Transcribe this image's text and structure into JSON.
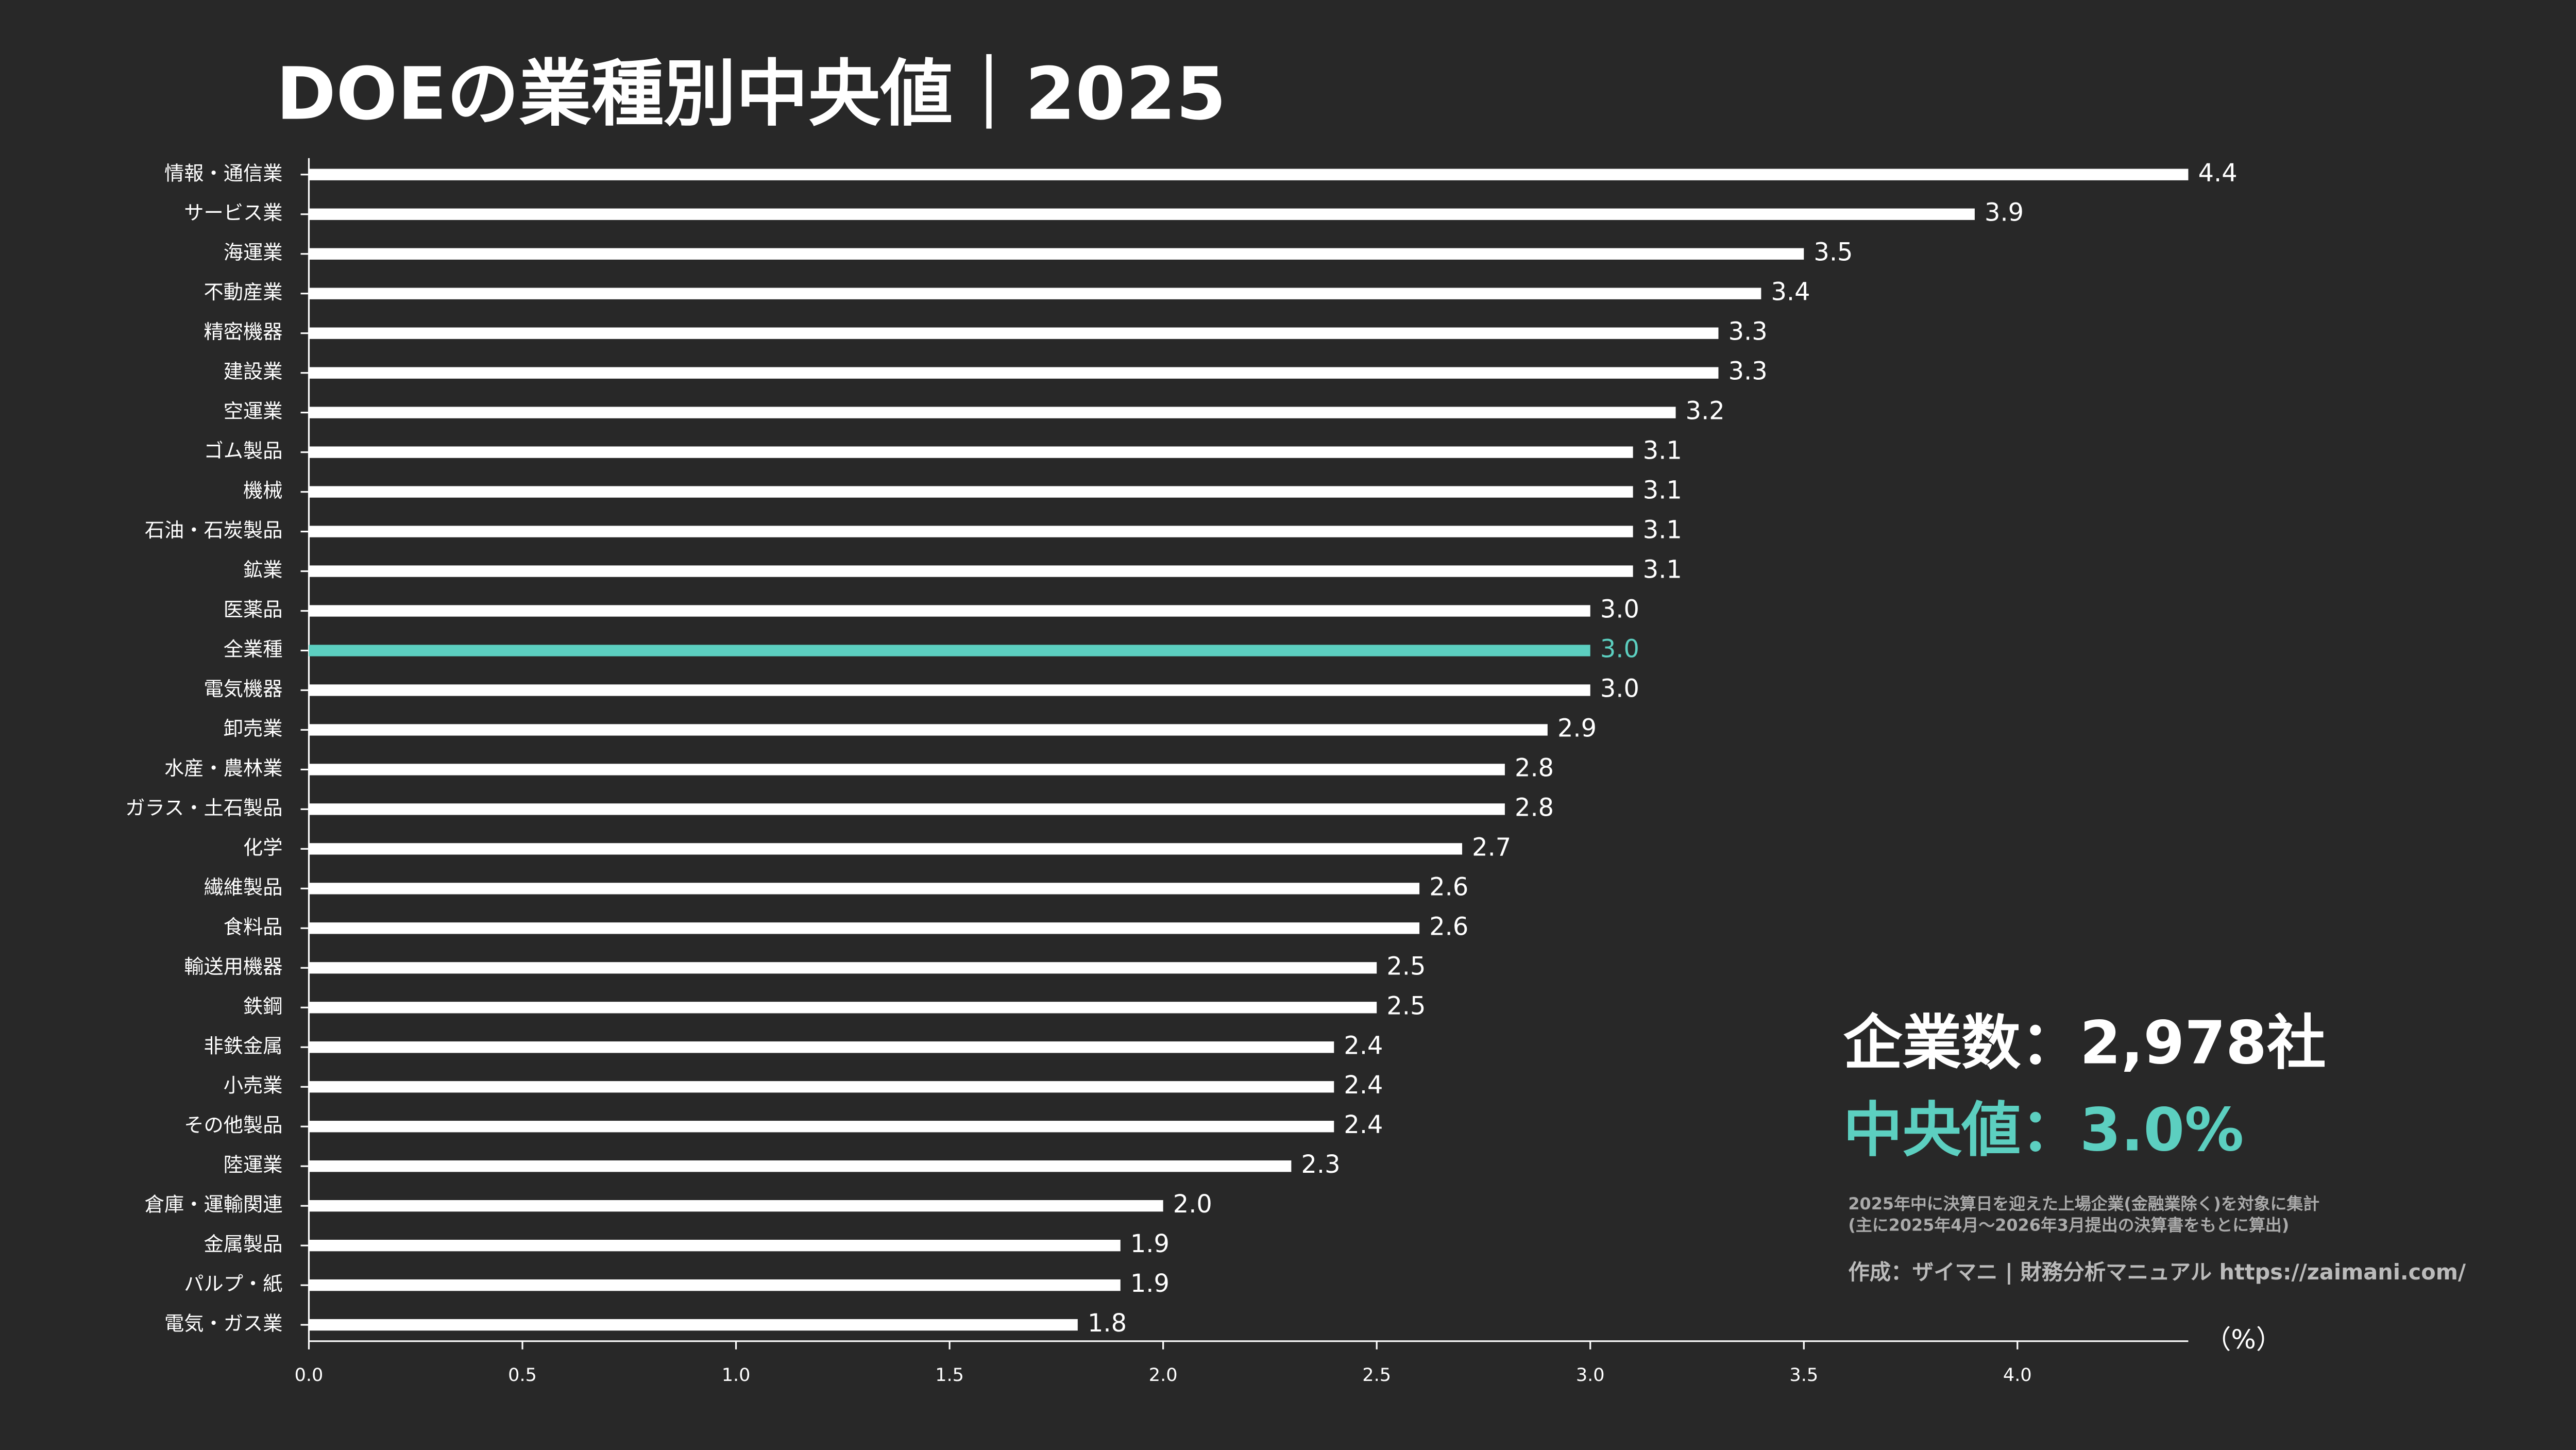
{
  "chart_data": {
    "type": "barh",
    "title": "DOEの業種別中央値｜2025",
    "categories": [
      "情報・通信業",
      "サービス業",
      "海運業",
      "不動産業",
      "精密機器",
      "建設業",
      "空運業",
      "ゴム製品",
      "機械",
      "石油・石炭製品",
      "鉱業",
      "医薬品",
      "全業種",
      "電気機器",
      "卸売業",
      "水産・農林業",
      "ガラス・土石製品",
      "化学",
      "繊維製品",
      "食料品",
      "輸送用機器",
      "鉄鋼",
      "非鉄金属",
      "小売業",
      "その他製品",
      "陸運業",
      "倉庫・運輸関連",
      "金属製品",
      "パルプ・紙",
      "電気・ガス業"
    ],
    "values": [
      4.4,
      3.9,
      3.5,
      3.4,
      3.3,
      3.3,
      3.2,
      3.1,
      3.1,
      3.1,
      3.1,
      3.0,
      3.0,
      3.0,
      2.9,
      2.8,
      2.8,
      2.7,
      2.6,
      2.6,
      2.5,
      2.5,
      2.4,
      2.4,
      2.4,
      2.3,
      2.0,
      1.9,
      1.9,
      1.8
    ],
    "value_labels": [
      "4.4",
      "3.9",
      "3.5",
      "3.4",
      "3.3",
      "3.3",
      "3.2",
      "3.1",
      "3.1",
      "3.1",
      "3.1",
      "3.0",
      "3.0",
      "3.0",
      "2.9",
      "2.8",
      "2.8",
      "2.7",
      "2.6",
      "2.6",
      "2.5",
      "2.5",
      "2.4",
      "2.4",
      "2.4",
      "2.3",
      "2.0",
      "1.9",
      "1.9",
      "1.8"
    ],
    "color": "#ffffff",
    "highlight_category": "全業種",
    "highlight_color": "#5ccfc0",
    "xlim": [
      0,
      4.4
    ],
    "xticks": [
      {
        "value": 0,
        "label": "0.0"
      },
      {
        "value": 0.5,
        "label": "0.5"
      },
      {
        "value": 1,
        "label": "1.0"
      },
      {
        "value": 1.5,
        "label": "1.5"
      },
      {
        "value": 2,
        "label": "2.0"
      },
      {
        "value": 2.5,
        "label": "2.5"
      },
      {
        "value": 3,
        "label": "3.0"
      },
      {
        "value": 3.5,
        "label": "3.5"
      },
      {
        "value": 4,
        "label": "4.0"
      }
    ],
    "x_unit": "（%）",
    "annotations": [
      "企業数：2,978社",
      "中央値：3.0%",
      "2025年中に決算日を迎えた上場企業(金融業除く)を対象に集計",
      "(主に2025年4月〜2026年3月提出の決算書をもとに算出)",
      "作成：ザイマニ | 財務分析マニュアル https://zaimani.com/"
    ]
  }
}
